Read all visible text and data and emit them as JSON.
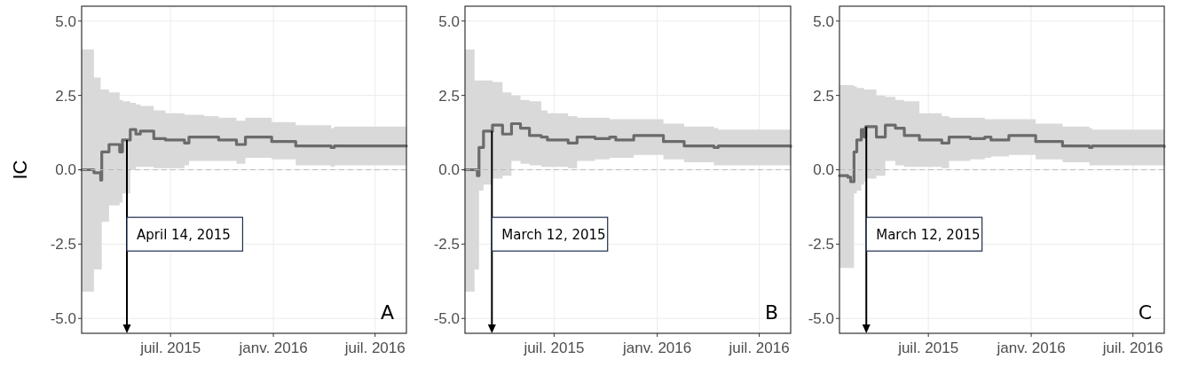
{
  "chart_data": [
    {
      "type": "step",
      "ylabel": "IC",
      "xlim": [
        "2015-01-23",
        "2016-08-26"
      ],
      "ylim": [
        -5.5,
        5.5
      ],
      "yticks": [
        {
          "value": -5,
          "label": "-5.0"
        },
        {
          "value": -2.5,
          "label": "-2.5"
        },
        {
          "value": 0,
          "label": "0.0"
        },
        {
          "value": 2.5,
          "label": "2.5"
        },
        {
          "value": 5,
          "label": "5.0"
        }
      ],
      "xticks": [
        {
          "value": "2015-07-01",
          "label": "juil. 2015"
        },
        {
          "value": "2016-01-01",
          "label": "janv. 2016"
        },
        {
          "value": "2016-07-01",
          "label": "juil. 2016"
        }
      ],
      "grid": true,
      "line_style": "solid",
      "ref_lines": [
        {
          "axis": "y",
          "value": 0,
          "color": "#bbbbbb",
          "line_style": "dashed"
        },
        {
          "axis": "x",
          "value": "2015-04-14",
          "label": "April 14, 2015",
          "color": "#000000"
        }
      ],
      "annotations": [
        "A"
      ],
      "series": [
        {
          "color": "#6b6b6b",
          "x": [
            "2015-01-23",
            "2015-02-12",
            "2015-02-14",
            "2015-02-26",
            "2015-02-28",
            "2015-03-13",
            "2015-04-01",
            "2015-04-06",
            "2015-04-20",
            "2015-04-30",
            "2015-05-08",
            "2015-06-01",
            "2015-06-22",
            "2015-07-26",
            "2015-08-03",
            "2015-08-30",
            "2015-09-25",
            "2015-10-27",
            "2015-11-12",
            "2015-12-29",
            "2016-02-10",
            "2016-04-13",
            "2016-04-19",
            "2016-08-26"
          ],
          "values": [
            0,
            0,
            -0.1,
            -0.35,
            0.6,
            0.85,
            0.6,
            1.0,
            1.35,
            1.2,
            1.3,
            1.05,
            1.0,
            0.9,
            1.1,
            1.1,
            1.0,
            0.85,
            1.1,
            0.95,
            0.8,
            0.75,
            0.8,
            0.8
          ],
          "lower": [
            -4.1,
            -4.1,
            -3.35,
            -3.35,
            -1.75,
            -1.2,
            -1.1,
            -0.8,
            0.0,
            0.1,
            0.1,
            0.05,
            0.05,
            0.15,
            0.3,
            0.3,
            0.3,
            0.2,
            0.4,
            0.35,
            0.15,
            0.1,
            0.15,
            0.15
          ],
          "upper": [
            4.05,
            4.05,
            3.1,
            2.7,
            2.7,
            2.6,
            2.35,
            2.3,
            2.25,
            2.2,
            2.15,
            2.0,
            1.9,
            1.85,
            1.85,
            1.8,
            1.75,
            1.65,
            1.75,
            1.6,
            1.5,
            1.4,
            1.45,
            1.45
          ]
        }
      ]
    },
    {
      "type": "step",
      "xlim": [
        "2015-01-23",
        "2016-08-26"
      ],
      "ylim": [
        -5.5,
        5.5
      ],
      "yticks": [
        {
          "value": -5,
          "label": "-5.0"
        },
        {
          "value": -2.5,
          "label": "-2.5"
        },
        {
          "value": 0,
          "label": "0.0"
        },
        {
          "value": 2.5,
          "label": "2.5"
        },
        {
          "value": 5,
          "label": "5.0"
        }
      ],
      "xticks": [
        {
          "value": "2015-07-01",
          "label": "juil. 2015"
        },
        {
          "value": "2016-01-01",
          "label": "janv. 2016"
        },
        {
          "value": "2016-07-01",
          "label": "juil. 2016"
        }
      ],
      "grid": true,
      "line_style": "solid",
      "ref_lines": [
        {
          "axis": "y",
          "value": 0,
          "color": "#bbbbbb",
          "line_style": "dashed"
        },
        {
          "axis": "x",
          "value": "2015-03-12",
          "label": "March 12, 2015",
          "color": "#000000"
        }
      ],
      "annotations": [
        "B"
      ],
      "series": [
        {
          "color": "#6b6b6b",
          "x": [
            "2015-01-23",
            "2015-02-04",
            "2015-02-09",
            "2015-02-14",
            "2015-02-17",
            "2015-02-25",
            "2015-03-13",
            "2015-03-31",
            "2015-04-16",
            "2015-05-02",
            "2015-05-18",
            "2015-06-08",
            "2015-06-19",
            "2015-07-26",
            "2015-08-11",
            "2015-09-12",
            "2015-10-08",
            "2015-10-19",
            "2015-11-20",
            "2016-01-12",
            "2016-02-18",
            "2016-04-11",
            "2016-04-19",
            "2016-08-26"
          ],
          "values": [
            0,
            0,
            0,
            -0.2,
            0.75,
            1.3,
            1.5,
            1.2,
            1.55,
            1.4,
            1.15,
            1.1,
            1.0,
            0.9,
            1.1,
            1.05,
            1.1,
            1.0,
            1.15,
            0.95,
            0.8,
            0.75,
            0.8,
            0.78
          ],
          "lower": [
            -4.1,
            -4.1,
            -3.35,
            -3.35,
            -0.7,
            -0.5,
            -0.3,
            -0.2,
            0.3,
            0.2,
            0.15,
            0.1,
            0.1,
            0.05,
            0.3,
            0.35,
            0.4,
            0.4,
            0.5,
            0.35,
            0.25,
            0.15,
            0.15,
            0.15
          ],
          "upper": [
            4.05,
            4.05,
            3.0,
            3.0,
            3.0,
            3.0,
            2.95,
            2.6,
            2.5,
            2.35,
            2.3,
            2.0,
            1.9,
            1.8,
            1.75,
            1.75,
            1.7,
            1.7,
            1.7,
            1.55,
            1.45,
            1.4,
            1.35,
            1.35
          ]
        }
      ]
    },
    {
      "type": "step",
      "xlim": [
        "2015-01-23",
        "2016-08-26"
      ],
      "ylim": [
        -5.5,
        5.5
      ],
      "yticks": [
        {
          "value": -5,
          "label": "-5.0"
        },
        {
          "value": -2.5,
          "label": "-2.5"
        },
        {
          "value": 0,
          "label": "0.0"
        },
        {
          "value": 2.5,
          "label": "2.5"
        },
        {
          "value": 5,
          "label": "5.0"
        }
      ],
      "xticks": [
        {
          "value": "2015-07-01",
          "label": "juil. 2015"
        },
        {
          "value": "2016-01-01",
          "label": "janv. 2016"
        },
        {
          "value": "2016-07-01",
          "label": "juil. 2016"
        }
      ],
      "grid": true,
      "line_style": "solid",
      "ref_lines": [
        {
          "axis": "y",
          "value": 0,
          "color": "#bbbbbb",
          "line_style": "dashed"
        },
        {
          "axis": "x",
          "value": "2015-03-12",
          "label": "March 12, 2015",
          "color": "#000000"
        }
      ],
      "annotations": [
        "C"
      ],
      "series": [
        {
          "color": "#6b6b6b",
          "x": [
            "2015-01-23",
            "2015-02-07",
            "2015-02-12",
            "2015-02-18",
            "2015-02-23",
            "2015-03-03",
            "2015-03-08",
            "2015-03-11",
            "2015-03-30",
            "2015-04-15",
            "2015-05-03",
            "2015-05-19",
            "2015-06-15",
            "2015-07-25",
            "2015-08-07",
            "2015-09-14",
            "2015-10-10",
            "2015-10-21",
            "2015-11-22",
            "2016-01-09",
            "2016-02-26",
            "2016-04-14",
            "2016-04-19",
            "2016-08-26"
          ],
          "values": [
            -0.2,
            -0.25,
            -0.4,
            0.6,
            1.0,
            1.35,
            1.1,
            1.45,
            1.1,
            1.5,
            1.4,
            1.15,
            1.0,
            0.9,
            1.1,
            1.05,
            1.1,
            1.0,
            1.15,
            0.95,
            0.8,
            0.75,
            0.8,
            0.78
          ],
          "lower": [
            -3.3,
            -3.3,
            -3.3,
            -0.8,
            -0.7,
            -0.5,
            -0.4,
            -0.3,
            -0.2,
            0.3,
            0.15,
            0.1,
            0.1,
            0.05,
            0.3,
            0.35,
            0.4,
            0.45,
            0.5,
            0.35,
            0.25,
            0.15,
            0.15,
            0.15
          ],
          "upper": [
            2.85,
            2.85,
            2.85,
            2.8,
            2.75,
            2.75,
            2.7,
            2.7,
            2.5,
            2.45,
            2.35,
            2.3,
            1.9,
            1.8,
            1.75,
            1.75,
            1.7,
            1.7,
            1.7,
            1.55,
            1.45,
            1.4,
            1.35,
            1.35
          ]
        }
      ]
    }
  ]
}
